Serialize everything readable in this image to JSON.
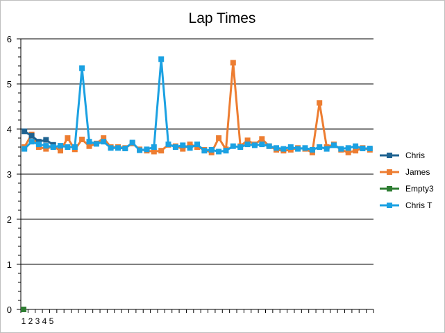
{
  "chart_data": {
    "type": "line",
    "title": "Lap Times",
    "ylim": [
      0,
      6
    ],
    "y_ticks": [
      "0",
      "1",
      "2",
      "3",
      "4",
      "5",
      "6"
    ],
    "x_tick_labels": [
      "1",
      "2",
      "3",
      "4",
      "5"
    ],
    "grid": true,
    "legend_position": "right",
    "colors": {
      "Chris": "#1f6391",
      "James": "#ed7d31",
      "Empty3": "#2e7d32",
      "Chris T": "#1ba1e2",
      "grid": "#000000",
      "border": "#bfbfbf"
    },
    "series": [
      {
        "name": "Chris",
        "color": "#1f6391",
        "values": [
          3.95,
          3.85,
          3.72,
          3.76,
          3.65
        ]
      },
      {
        "name": "James",
        "color": "#ed7d31",
        "values": [
          3.6,
          3.88,
          3.6,
          3.56,
          3.62,
          3.52,
          3.8,
          3.55,
          3.77,
          3.62,
          3.68,
          3.8,
          3.6,
          3.6,
          3.58,
          3.68,
          3.55,
          3.52,
          3.5,
          3.52,
          3.65,
          3.62,
          3.56,
          3.66,
          3.6,
          3.54,
          3.48,
          3.8,
          3.55,
          5.47,
          3.62,
          3.75,
          3.66,
          3.78,
          3.62,
          3.54,
          3.52,
          3.54,
          3.58,
          3.56,
          3.48,
          4.58,
          3.6,
          3.66,
          3.54,
          3.48,
          3.52,
          3.58,
          3.54
        ]
      },
      {
        "name": "Empty3",
        "color": "#2e7d32",
        "values": [
          0
        ]
      },
      {
        "name": "Chris T",
        "color": "#1ba1e2",
        "values": [
          3.56,
          3.72,
          3.66,
          3.63,
          3.6,
          3.63,
          3.6,
          3.6,
          5.35,
          3.72,
          3.67,
          3.72,
          3.58,
          3.58,
          3.57,
          3.7,
          3.53,
          3.55,
          3.6,
          5.55,
          3.66,
          3.6,
          3.64,
          3.58,
          3.66,
          3.52,
          3.54,
          3.5,
          3.52,
          3.62,
          3.6,
          3.66,
          3.64,
          3.66,
          3.62,
          3.58,
          3.56,
          3.6,
          3.56,
          3.58,
          3.54,
          3.6,
          3.56,
          3.64,
          3.56,
          3.58,
          3.62,
          3.57,
          3.57
        ]
      }
    ]
  }
}
